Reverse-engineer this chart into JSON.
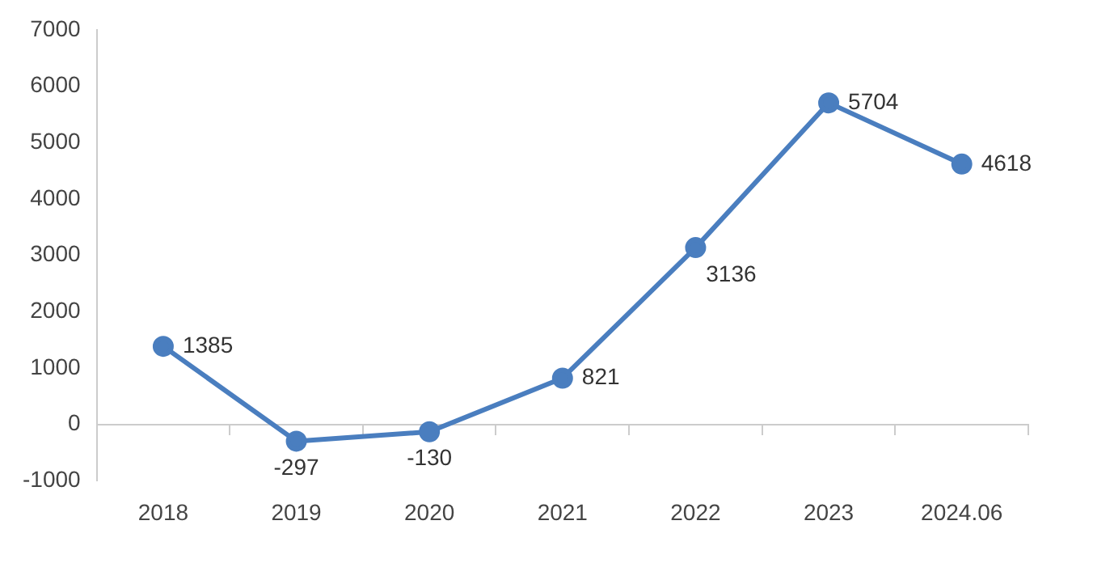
{
  "chart_data": {
    "type": "line",
    "categories": [
      "2018",
      "2019",
      "2020",
      "2021",
      "2022",
      "2023",
      "2024.06"
    ],
    "series": [
      {
        "color": "#4a7ebf",
        "values": [
          1385,
          -297,
          -130,
          821,
          3136,
          5704,
          4618
        ]
      }
    ],
    "ylim": [
      -1000,
      7000
    ],
    "yticks": [
      -1000,
      0,
      1000,
      2000,
      3000,
      4000,
      5000,
      6000,
      7000
    ],
    "legend": false,
    "marker": "circle",
    "line_style": "solid",
    "data_labels": true
  }
}
